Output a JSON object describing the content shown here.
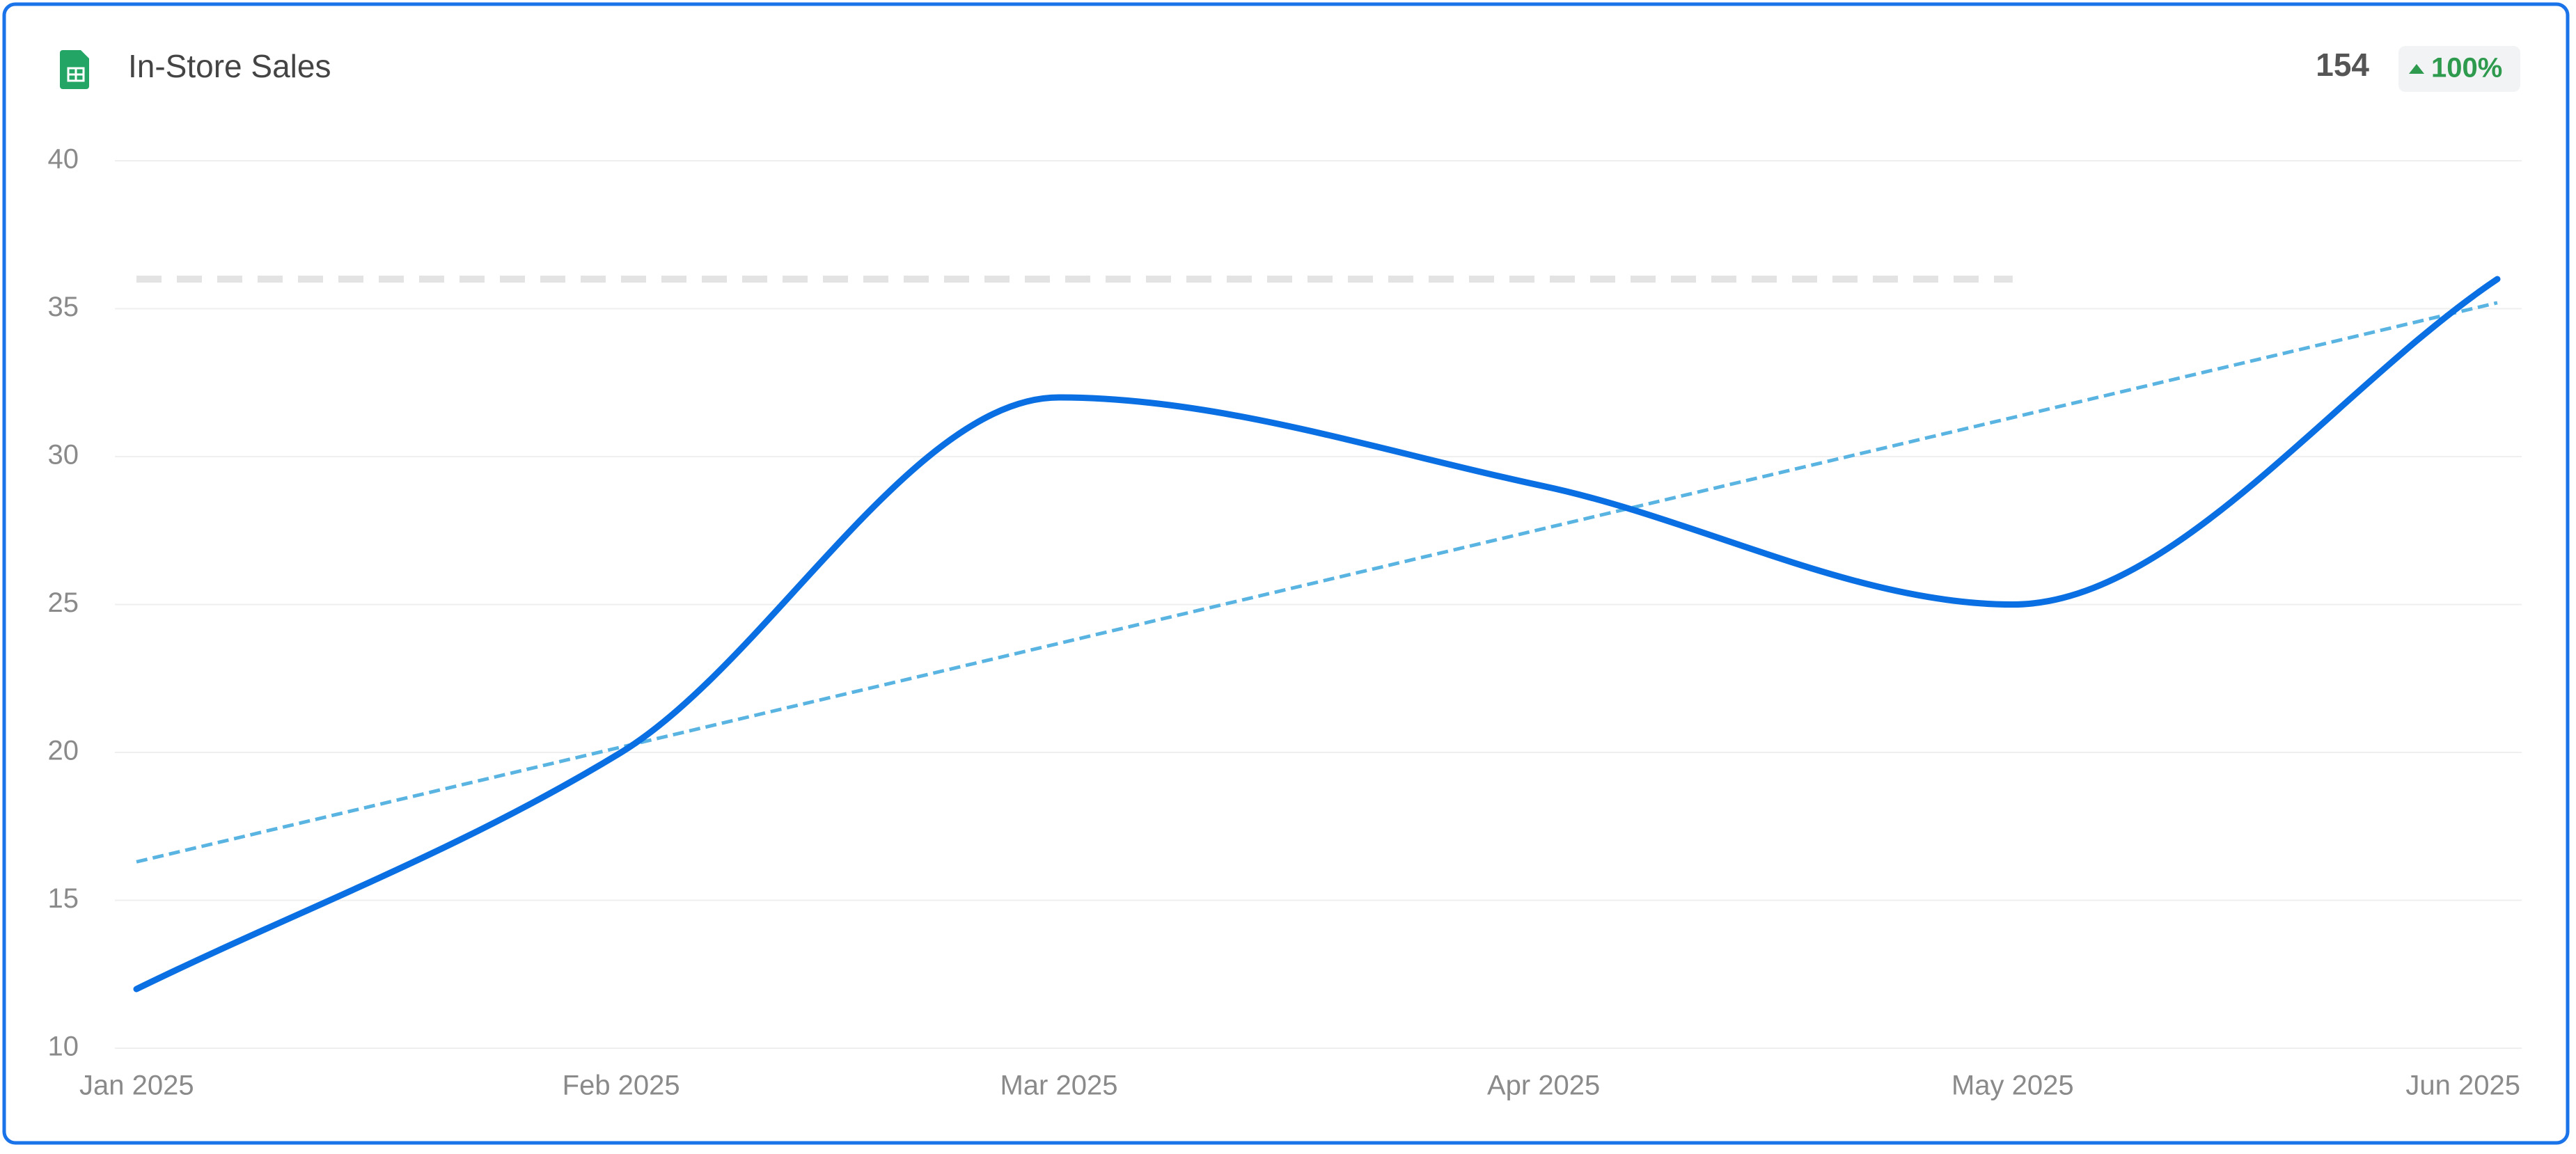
{
  "header": {
    "title": "In-Store Sales",
    "total": 154,
    "change": "100%"
  },
  "chart_data": {
    "type": "line",
    "x": [
      "2025-01",
      "2025-02",
      "2025-03",
      "2025-04",
      "2025-05",
      "2025-06"
    ],
    "series": [
      {
        "color": "#0a6fe3",
        "values": [
          12,
          20,
          32,
          29,
          25,
          36
        ]
      }
    ],
    "trendline": {
      "color": "#5ab4e2",
      "values": [
        16.3,
        35.2
      ]
    },
    "reference_line": {
      "color": "#e3e3e3",
      "value": 36,
      "x": [
        "2025-01",
        "2025-05"
      ]
    },
    "ylim": [
      10,
      40
    ],
    "yticks": [
      10,
      15,
      20,
      25,
      30,
      35,
      40
    ],
    "xticks": [
      {
        "value": "2025-01",
        "label": "Jan 2025"
      },
      {
        "value": "2025-02",
        "label": "Feb 2025"
      },
      {
        "value": "2025-03",
        "label": "Mar 2025"
      },
      {
        "value": "2025-04",
        "label": "Apr 2025"
      },
      {
        "value": "2025-05",
        "label": "May 2025"
      },
      {
        "value": "2025-06",
        "label": "Jun 2025"
      }
    ],
    "grid": true
  }
}
